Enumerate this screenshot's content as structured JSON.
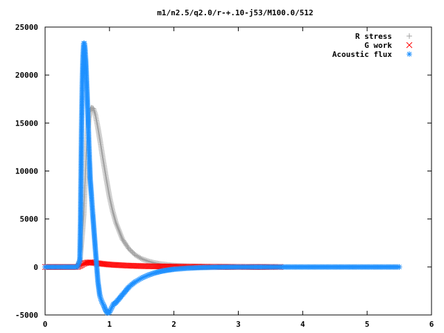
{
  "chart_data": {
    "type": "scatter",
    "title": "m1/n2.5/q2.0/r-+.10-j53/M100.0/512",
    "xlabel": "",
    "ylabel": "",
    "xlim": [
      0,
      6
    ],
    "ylim": [
      -5000,
      25000
    ],
    "xticks": [
      "0",
      "1",
      "2",
      "3",
      "4",
      "5",
      "6"
    ],
    "yticks": [
      "-5000",
      "0",
      "5000",
      "10000",
      "15000",
      "20000",
      "25000"
    ],
    "grid": false,
    "legend_position": "top-right",
    "series": [
      {
        "name": "R stress",
        "marker": "+",
        "color": "#a0a0a0",
        "points": [
          [
            0.0,
            0
          ],
          [
            0.3,
            0
          ],
          [
            0.5,
            0
          ],
          [
            0.54,
            600
          ],
          [
            0.56,
            2200
          ],
          [
            0.58,
            3700
          ],
          [
            0.6,
            5500
          ],
          [
            0.62,
            8800
          ],
          [
            0.64,
            11800
          ],
          [
            0.66,
            14000
          ],
          [
            0.68,
            15500
          ],
          [
            0.7,
            16300
          ],
          [
            0.72,
            16600
          ],
          [
            0.75,
            16500
          ],
          [
            0.78,
            15900
          ],
          [
            0.82,
            14500
          ],
          [
            0.86,
            12900
          ],
          [
            0.9,
            11200
          ],
          [
            0.95,
            9200
          ],
          [
            1.0,
            7300
          ],
          [
            1.05,
            5800
          ],
          [
            1.1,
            4600
          ],
          [
            1.2,
            2900
          ],
          [
            1.3,
            1900
          ],
          [
            1.4,
            1250
          ],
          [
            1.5,
            850
          ],
          [
            1.6,
            600
          ],
          [
            1.7,
            420
          ],
          [
            1.8,
            300
          ],
          [
            1.9,
            220
          ],
          [
            2.0,
            160
          ],
          [
            2.2,
            90
          ],
          [
            2.4,
            50
          ],
          [
            2.6,
            30
          ],
          [
            2.8,
            20
          ],
          [
            3.0,
            10
          ],
          [
            3.5,
            0
          ],
          [
            4.0,
            0
          ],
          [
            4.5,
            0
          ],
          [
            5.0,
            0
          ],
          [
            5.5,
            0
          ]
        ]
      },
      {
        "name": "G work",
        "marker": "x",
        "color": "#ff0000",
        "points": [
          [
            0.0,
            0
          ],
          [
            0.3,
            0
          ],
          [
            0.5,
            0
          ],
          [
            0.55,
            150
          ],
          [
            0.6,
            350
          ],
          [
            0.65,
            450
          ],
          [
            0.7,
            480
          ],
          [
            0.75,
            450
          ],
          [
            0.8,
            400
          ],
          [
            0.9,
            320
          ],
          [
            1.0,
            250
          ],
          [
            1.2,
            170
          ],
          [
            1.4,
            110
          ],
          [
            1.6,
            80
          ],
          [
            1.8,
            60
          ],
          [
            2.0,
            40
          ],
          [
            2.4,
            20
          ],
          [
            2.8,
            10
          ],
          [
            3.2,
            0
          ],
          [
            3.65,
            0
          ]
        ]
      },
      {
        "name": "Acoustic flux",
        "marker": "*",
        "color": "#1e90ff",
        "points": [
          [
            0.0,
            0
          ],
          [
            0.3,
            0
          ],
          [
            0.5,
            0
          ],
          [
            0.54,
            700
          ],
          [
            0.55,
            4800
          ],
          [
            0.56,
            11000
          ],
          [
            0.57,
            16200
          ],
          [
            0.58,
            20000
          ],
          [
            0.59,
            22200
          ],
          [
            0.6,
            23300
          ],
          [
            0.61,
            23300
          ],
          [
            0.62,
            22700
          ],
          [
            0.63,
            21600
          ],
          [
            0.64,
            20100
          ],
          [
            0.65,
            18400
          ],
          [
            0.66,
            16600
          ],
          [
            0.67,
            14800
          ],
          [
            0.68,
            12900
          ],
          [
            0.69,
            11000
          ],
          [
            0.7,
            9200
          ],
          [
            0.72,
            7400
          ],
          [
            0.74,
            5500
          ],
          [
            0.76,
            3700
          ],
          [
            0.78,
            1900
          ],
          [
            0.8,
            200
          ],
          [
            0.82,
            -1500
          ],
          [
            0.85,
            -3000
          ],
          [
            0.88,
            -3600
          ],
          [
            0.91,
            -4000
          ],
          [
            0.94,
            -4500
          ],
          [
            0.97,
            -4800
          ],
          [
            1.0,
            -4700
          ],
          [
            1.03,
            -4300
          ],
          [
            1.06,
            -3900
          ],
          [
            1.1,
            -3700
          ],
          [
            1.15,
            -3300
          ],
          [
            1.2,
            -2900
          ],
          [
            1.25,
            -2500
          ],
          [
            1.3,
            -2100
          ],
          [
            1.35,
            -1800
          ],
          [
            1.4,
            -1550
          ],
          [
            1.5,
            -1150
          ],
          [
            1.6,
            -850
          ],
          [
            1.7,
            -620
          ],
          [
            1.8,
            -450
          ],
          [
            1.9,
            -330
          ],
          [
            2.0,
            -240
          ],
          [
            2.2,
            -130
          ],
          [
            2.4,
            -70
          ],
          [
            2.6,
            -30
          ],
          [
            2.8,
            -10
          ],
          [
            3.0,
            0
          ],
          [
            3.5,
            0
          ],
          [
            4.0,
            0
          ],
          [
            4.5,
            0
          ],
          [
            5.0,
            0
          ],
          [
            5.5,
            0
          ]
        ]
      }
    ]
  }
}
